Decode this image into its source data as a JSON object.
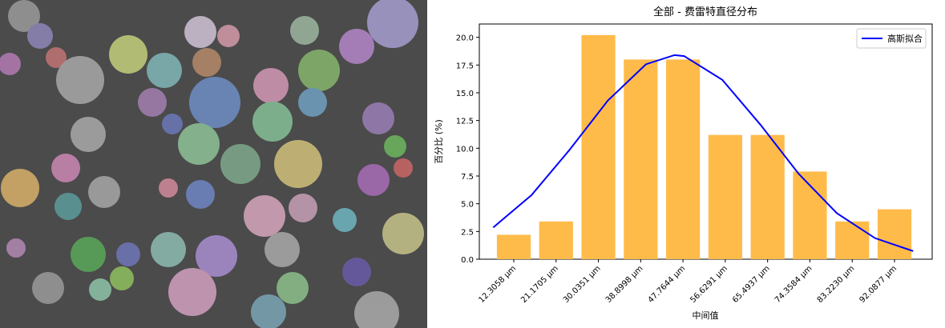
{
  "chart_data": {
    "type": "bar",
    "title": "全部 - 费雷特直径分布",
    "xlabel": "中间值",
    "ylabel": "百分比 (%)",
    "categories": [
      "12.3058 μm",
      "21.1705 μm",
      "30.0351 μm",
      "38.8998 μm",
      "47.7644 μm",
      "56.6291 μm",
      "65.4937 μm",
      "74.3584 μm",
      "83.2230 μm",
      "92.0877 μm"
    ],
    "values": [
      2.2,
      3.4,
      20.2,
      18.0,
      18.0,
      11.2,
      11.2,
      7.9,
      3.4,
      4.5
    ],
    "color": "#ffbb4a",
    "fit": {
      "name": "高斯拟合",
      "color": "#0000ff",
      "x": [
        8,
        16,
        24,
        32,
        40,
        46,
        48,
        56,
        64,
        72,
        80,
        88,
        96
      ],
      "values": [
        2.86,
        5.77,
        9.86,
        14.29,
        17.57,
        18.4,
        18.31,
        16.17,
        12.12,
        7.7,
        4.15,
        1.9,
        0.73
      ]
    },
    "ylim": [
      0,
      21.2
    ],
    "yticks": [
      {
        "value": 0,
        "label": "0.0"
      },
      2.5,
      {
        "value": 5,
        "label": "5.0"
      },
      7.5,
      {
        "value": 10,
        "label": "10.0"
      },
      12.5,
      {
        "value": 15,
        "label": "15.0"
      },
      17.5,
      {
        "value": 20,
        "label": "20.0"
      }
    ],
    "grid": false,
    "legend": "upper right"
  }
}
